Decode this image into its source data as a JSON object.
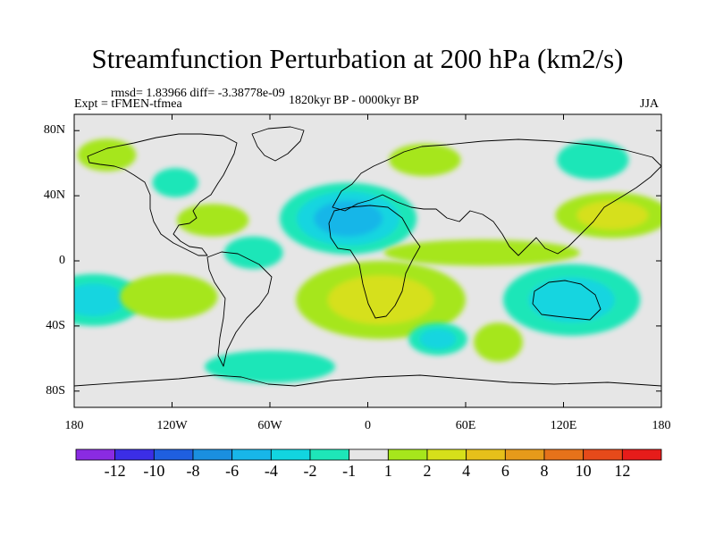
{
  "title": "Streamfunction Perturbation at 200 hPa (km2/s)",
  "stats_text": "rmsd= 1.83966 diff= -3.38778e-09",
  "experiment_text": "Expt = tFMEN-tfmea",
  "period_text": "1820kyr BP - 0000kyr BP",
  "season_text": "JJA",
  "map": {
    "projection": "cylindrical equidistant",
    "lon_range": [
      -180,
      180
    ],
    "lat_range": [
      -90,
      90
    ],
    "background_color": "#e6e6e6",
    "lat_ticks": [
      {
        "lat": 80,
        "label": "80N"
      },
      {
        "lat": 40,
        "label": "40N"
      },
      {
        "lat": 0,
        "label": "0"
      },
      {
        "lat": -40,
        "label": "40S"
      },
      {
        "lat": -80,
        "label": "80S"
      }
    ],
    "lon_ticks": [
      {
        "lon": -180,
        "label": "180"
      },
      {
        "lon": -120,
        "label": "120W"
      },
      {
        "lon": -60,
        "label": "60W"
      },
      {
        "lon": 0,
        "label": "0"
      },
      {
        "lon": 60,
        "label": "60E"
      },
      {
        "lon": 120,
        "label": "120E"
      },
      {
        "lon": 180,
        "label": "180"
      }
    ],
    "features": [
      {
        "name": "anomaly-neg-north-atlantic",
        "lon": -12,
        "lat": 26,
        "rlon": 42,
        "rlat": 22,
        "level": -5
      },
      {
        "name": "anomaly-pos-south-atlantic",
        "lon": 8,
        "lat": -24,
        "rlon": 52,
        "rlat": 24,
        "level": 4
      },
      {
        "name": "anomaly-neg-australia",
        "lon": 125,
        "lat": -24,
        "rlon": 42,
        "rlat": 22,
        "level": -4
      },
      {
        "name": "anomaly-neg-south-pacific",
        "lon": -168,
        "lat": -24,
        "rlon": 30,
        "rlat": 16,
        "level": -3
      },
      {
        "name": "anomaly-pos-north-pacific",
        "lon": 150,
        "lat": 28,
        "rlon": 35,
        "rlat": 14,
        "level": 4
      },
      {
        "name": "anomaly-pos-east-pacific",
        "lon": -122,
        "lat": -22,
        "rlon": 30,
        "rlat": 14,
        "level": 2
      },
      {
        "name": "anomaly-pos-gulf",
        "lon": -95,
        "lat": 25,
        "rlon": 22,
        "rlat": 10,
        "level": 2
      },
      {
        "name": "anomaly-neg-caribbean",
        "lon": -70,
        "lat": 5,
        "rlon": 18,
        "rlat": 10,
        "level": -2
      },
      {
        "name": "anomaly-neg-north-america",
        "lon": -118,
        "lat": 48,
        "rlon": 14,
        "rlat": 9,
        "level": -2
      },
      {
        "name": "anomaly-neg-indian-ocean",
        "lon": 43,
        "lat": -48,
        "rlon": 18,
        "rlat": 10,
        "level": -3
      },
      {
        "name": "anomaly-neg-siberia",
        "lon": 138,
        "lat": 62,
        "rlon": 22,
        "rlat": 12,
        "level": -2
      },
      {
        "name": "anomaly-pos-scandinavia",
        "lon": 35,
        "lat": 62,
        "rlon": 22,
        "rlat": 10,
        "level": 2
      },
      {
        "name": "anomaly-pos-indian-tropics",
        "lon": 70,
        "lat": 5,
        "rlon": 60,
        "rlat": 8,
        "level": 2
      },
      {
        "name": "anomaly-pos-alaska",
        "lon": -160,
        "lat": 65,
        "rlon": 18,
        "rlat": 10,
        "level": 2
      },
      {
        "name": "anomaly-neg-southern-ocean",
        "lon": -60,
        "lat": -65,
        "rlon": 40,
        "rlat": 10,
        "level": -1.5
      },
      {
        "name": "anomaly-pos-south-indian",
        "lon": 80,
        "lat": -50,
        "rlon": 15,
        "rlat": 12,
        "level": 2
      }
    ]
  },
  "colorbar": {
    "colors": [
      "#8a2be2",
      "#3b2ee6",
      "#1f5fe0",
      "#1a8fe0",
      "#18b6e8",
      "#12d5e0",
      "#1ee6b8",
      "#e6e6e6",
      "#a6e61c",
      "#d6e01a",
      "#e6c01a",
      "#e69a1a",
      "#e6721a",
      "#e64a1a",
      "#e61c1a"
    ],
    "labels": [
      "-12",
      "-10",
      "-8",
      "-6",
      "-4",
      "-2",
      "-1",
      "1",
      "2",
      "4",
      "6",
      "8",
      "10",
      "12"
    ]
  }
}
